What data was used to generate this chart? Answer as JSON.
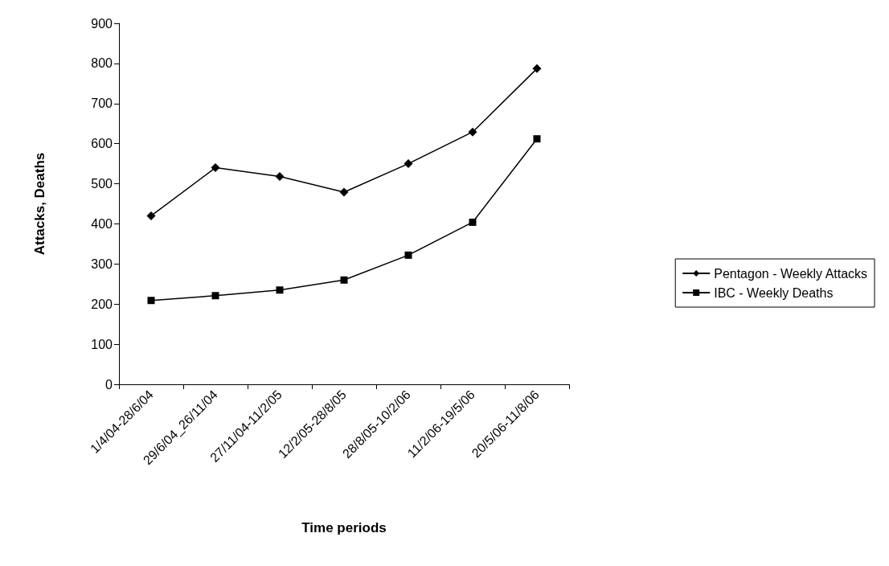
{
  "chart_data": {
    "type": "line",
    "xlabel": "Time periods",
    "ylabel": "Attacks, Deaths",
    "categories": [
      "1/4/04-28/6/04",
      "29/6/04_26/11/04",
      "27/11/04-11/2/05",
      "12/2/05-28/8/05",
      "28/8/05-10/2/06",
      "11/2/06-19/5/06",
      "20/5/06-11/8/06"
    ],
    "series": [
      {
        "name": "Pentagon - Weekly Attacks",
        "color": "#000000",
        "marker": "diamond",
        "values": [
          420,
          540,
          518,
          479,
          550,
          629,
          787
        ]
      },
      {
        "name": "IBC - Weekly Deaths",
        "color": "#000000",
        "marker": "square",
        "values": [
          209,
          221,
          235,
          260,
          322,
          404,
          612
        ]
      }
    ],
    "ylim": [
      0,
      900
    ],
    "yticks": [
      0,
      100,
      200,
      300,
      400,
      500,
      600,
      700,
      800,
      900
    ],
    "grid": false,
    "legend": "right",
    "line_style": "solid"
  }
}
